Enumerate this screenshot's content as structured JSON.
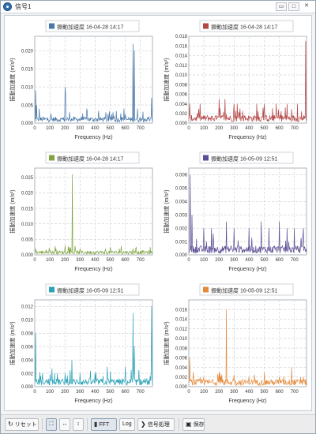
{
  "window": {
    "title": "信号1",
    "minimize_icon": "minimize-icon",
    "restore_icon": "restore-icon",
    "close_icon": "close-icon",
    "close_label": "✕",
    "restore_label": "□",
    "minimize_label": "▭"
  },
  "colors": {
    "blue": "#4a78a8",
    "red": "#b54646",
    "green": "#7fa441",
    "purple": "#5b4e94",
    "teal": "#2ea3b8",
    "orange": "#e58a3c"
  },
  "chart_data": [
    {
      "type": "line",
      "legend": "振動加速度 16-04-28 14:17",
      "color": "#4a78a8",
      "xlabel": "Frequency (Hz)",
      "ylabel": "振動加速度 (m/s²)",
      "xlim": [
        0,
        780
      ],
      "ylim": [
        0,
        0.024
      ],
      "xticks": [
        0,
        100,
        200,
        300,
        400,
        500,
        600,
        700
      ],
      "yticks": [
        0.0,
        0.005,
        0.01,
        0.015,
        0.02
      ],
      "ytick_labels": [
        "0.000",
        "0.005",
        "0.010",
        "0.015",
        "0.020"
      ],
      "baseline": 0.001,
      "peaks": [
        [
          5,
          0.009
        ],
        [
          12,
          0.005
        ],
        [
          30,
          0.004
        ],
        [
          200,
          0.01
        ],
        [
          205,
          0.008
        ],
        [
          230,
          0.003
        ],
        [
          345,
          0.004
        ],
        [
          470,
          0.003
        ],
        [
          520,
          0.003
        ],
        [
          590,
          0.004
        ],
        [
          650,
          0.022
        ],
        [
          660,
          0.02
        ],
        [
          680,
          0.004
        ],
        [
          775,
          0.007
        ]
      ]
    },
    {
      "type": "line",
      "legend": "振動加速度 16-04-28 14:17",
      "color": "#b54646",
      "xlabel": "Frequency (Hz)",
      "ylabel": "振動加速度 (m/s²)",
      "xlim": [
        0,
        780
      ],
      "ylim": [
        0,
        0.018
      ],
      "xticks": [
        0,
        100,
        200,
        300,
        400,
        500,
        600,
        700
      ],
      "yticks": [
        0.0,
        0.002,
        0.004,
        0.006,
        0.008,
        0.01,
        0.012,
        0.014,
        0.016,
        0.018
      ],
      "ytick_labels": [
        "0.000",
        "0.002",
        "0.004",
        "0.006",
        "0.008",
        "0.010",
        "0.012",
        "0.014",
        "0.016",
        "0.018"
      ],
      "baseline": 0.001,
      "peaks": [
        [
          5,
          0.004
        ],
        [
          65,
          0.003
        ],
        [
          200,
          0.005
        ],
        [
          240,
          0.005
        ],
        [
          300,
          0.004
        ],
        [
          320,
          0.004
        ],
        [
          340,
          0.003
        ],
        [
          450,
          0.004
        ],
        [
          500,
          0.004
        ],
        [
          580,
          0.004
        ],
        [
          650,
          0.004
        ],
        [
          720,
          0.004
        ],
        [
          775,
          0.017
        ]
      ]
    },
    {
      "type": "line",
      "legend": "振動加速度 16-04-28 14:17",
      "color": "#7fa441",
      "xlabel": "Frequency (Hz)",
      "ylabel": "振動加速度 (m/s²)",
      "xlim": [
        0,
        780
      ],
      "ylim": [
        0,
        0.028
      ],
      "xticks": [
        0,
        100,
        200,
        300,
        400,
        500,
        600,
        700
      ],
      "yticks": [
        0.0,
        0.005,
        0.01,
        0.015,
        0.02,
        0.025
      ],
      "ytick_labels": [
        "0.000",
        "0.005",
        "0.010",
        "0.015",
        "0.020",
        "0.025"
      ],
      "baseline": 0.0008,
      "peaks": [
        [
          5,
          0.002
        ],
        [
          200,
          0.003
        ],
        [
          250,
          0.026
        ],
        [
          300,
          0.002
        ],
        [
          500,
          0.0025
        ],
        [
          560,
          0.002
        ],
        [
          650,
          0.002
        ]
      ]
    },
    {
      "type": "line",
      "legend": "振動加速度 16-05-09 12:51",
      "color": "#5b4e94",
      "xlabel": "Frequency (Hz)",
      "ylabel": "振動加速度 (m/s²)",
      "xlim": [
        0,
        780
      ],
      "ylim": [
        0,
        0.0065
      ],
      "xticks": [
        0,
        100,
        200,
        300,
        400,
        500,
        600,
        700
      ],
      "yticks": [
        0.0,
        0.001,
        0.002,
        0.003,
        0.004,
        0.005,
        0.006
      ],
      "ytick_labels": [
        "0.000",
        "0.001",
        "0.002",
        "0.003",
        "0.004",
        "0.005",
        "0.006"
      ],
      "baseline": 0.0004,
      "peaks": [
        [
          10,
          0.006
        ],
        [
          20,
          0.003
        ],
        [
          100,
          0.002
        ],
        [
          150,
          0.002
        ],
        [
          250,
          0.0025
        ],
        [
          300,
          0.002
        ],
        [
          400,
          0.002
        ],
        [
          480,
          0.0025
        ],
        [
          530,
          0.002
        ],
        [
          600,
          0.0025
        ],
        [
          650,
          0.002
        ],
        [
          700,
          0.002
        ],
        [
          760,
          0.002
        ]
      ]
    },
    {
      "type": "line",
      "legend": "振動加速度 16-05-09 12:51",
      "color": "#2ea3b8",
      "xlabel": "Frequency (Hz)",
      "ylabel": "振動加速度 (m/s²)",
      "xlim": [
        0,
        780
      ],
      "ylim": [
        0,
        0.013
      ],
      "xticks": [
        0,
        100,
        200,
        300,
        400,
        500,
        600,
        700
      ],
      "yticks": [
        0.0,
        0.002,
        0.004,
        0.006,
        0.008,
        0.01,
        0.012
      ],
      "ytick_labels": [
        "0.000",
        "0.002",
        "0.004",
        "0.006",
        "0.008",
        "0.010",
        "0.012"
      ],
      "baseline": 0.0007,
      "peaks": [
        [
          5,
          0.008
        ],
        [
          50,
          0.002
        ],
        [
          150,
          0.002
        ],
        [
          200,
          0.002
        ],
        [
          245,
          0.004
        ],
        [
          300,
          0.002
        ],
        [
          400,
          0.002
        ],
        [
          480,
          0.003
        ],
        [
          600,
          0.003
        ],
        [
          650,
          0.011
        ],
        [
          660,
          0.006
        ],
        [
          775,
          0.012
        ]
      ]
    },
    {
      "type": "line",
      "legend": "振動加速度 16-05-09 12:51",
      "color": "#e58a3c",
      "xlabel": "Frequency (Hz)",
      "ylabel": "振動加速度 (m/s²)",
      "xlim": [
        0,
        780
      ],
      "ylim": [
        0,
        0.018
      ],
      "xticks": [
        0,
        100,
        200,
        300,
        400,
        500,
        600,
        700
      ],
      "yticks": [
        0.0,
        0.002,
        0.004,
        0.006,
        0.008,
        0.01,
        0.012,
        0.014,
        0.016
      ],
      "ytick_labels": [
        "0.000",
        "0.002",
        "0.004",
        "0.006",
        "0.008",
        "0.010",
        "0.012",
        "0.014",
        "0.016"
      ],
      "baseline": 0.0009,
      "peaks": [
        [
          5,
          0.006
        ],
        [
          30,
          0.003
        ],
        [
          100,
          0.002
        ],
        [
          200,
          0.003
        ],
        [
          250,
          0.016
        ],
        [
          300,
          0.0025
        ],
        [
          400,
          0.002
        ],
        [
          500,
          0.003
        ],
        [
          600,
          0.002
        ],
        [
          680,
          0.004
        ],
        [
          760,
          0.002
        ]
      ]
    }
  ],
  "toolbar": {
    "reset_label": "リセット",
    "reset_icon": "reset-icon",
    "fit_icon": "fit-icon",
    "hzoom_icon": "horizontal-zoom-icon",
    "vzoom_icon": "vertical-zoom-icon",
    "fft_label": "FFT",
    "fft_icon": "bar-chart-icon",
    "log_label": "Log",
    "signal_label": "信号処理",
    "signal_icon": "chevron-right-icon",
    "save_label": "保存",
    "save_icon": "image-icon",
    "fit_glyph": "⛶",
    "hzoom_glyph": "↔",
    "vzoom_glyph": "↕",
    "reset_glyph": "↻",
    "fft_glyph": "▮",
    "signal_glyph": "❯",
    "save_glyph": "▣"
  }
}
